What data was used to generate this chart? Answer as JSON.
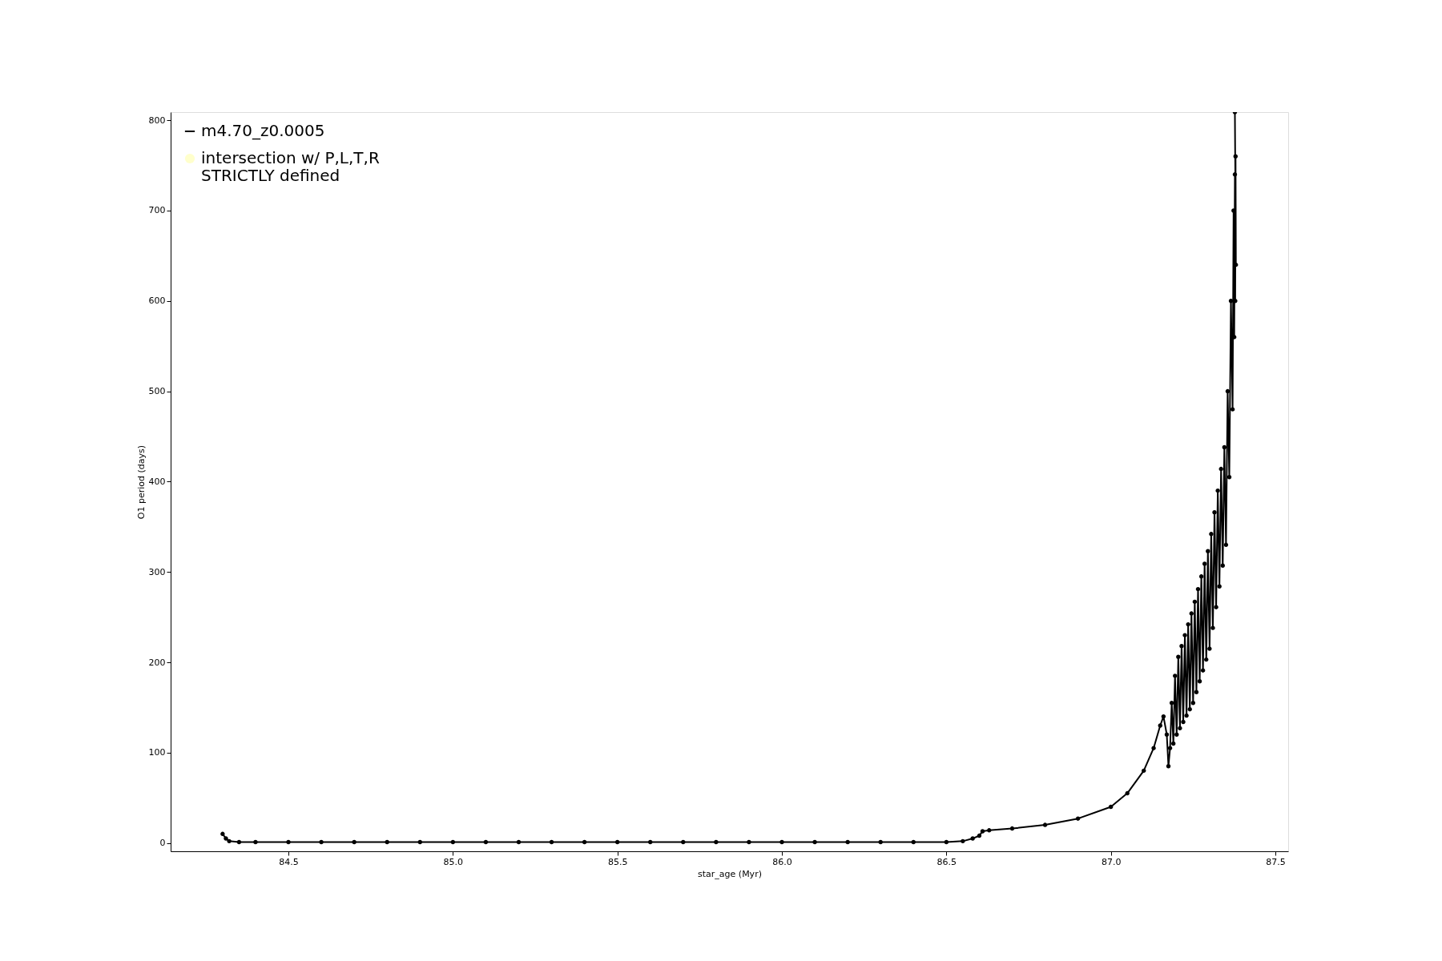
{
  "chart_data": {
    "type": "line",
    "xlabel": "star_age (Myr)",
    "ylabel": "O1 period (days)",
    "xlim": [
      84.142,
      87.539
    ],
    "ylim": [
      -9.2,
      809
    ],
    "xticks": [
      {
        "value": 84.5,
        "label": "84.5"
      },
      {
        "value": 85.0,
        "label": "85.0"
      },
      {
        "value": 85.5,
        "label": "85.5"
      },
      {
        "value": 86.0,
        "label": "86.0"
      },
      {
        "value": 86.5,
        "label": "86.5"
      },
      {
        "value": 87.0,
        "label": "87.0"
      },
      {
        "value": 87.5,
        "label": "87.5"
      }
    ],
    "yticks": [
      0,
      100,
      200,
      300,
      400,
      500,
      600,
      700,
      800
    ],
    "grid": false,
    "legend": "top left",
    "marker": "circle",
    "line_style": "solid",
    "series": [
      {
        "name": "m4.70_z0.0005",
        "color": "#000000",
        "x": [
          84.3,
          84.31,
          84.32,
          84.35,
          84.4,
          84.5,
          84.6,
          84.7,
          84.8,
          84.9,
          85.0,
          85.1,
          85.2,
          85.3,
          85.4,
          85.5,
          85.6,
          85.7,
          85.8,
          85.9,
          86.0,
          86.1,
          86.2,
          86.3,
          86.4,
          86.5,
          86.55,
          86.58,
          86.6,
          86.61,
          86.63,
          86.7,
          86.8,
          86.9,
          87.0,
          87.05,
          87.1,
          87.13,
          87.15,
          87.16,
          87.17,
          87.175,
          87.18,
          87.185,
          87.19,
          87.195,
          87.2,
          87.205,
          87.21,
          87.215,
          87.22,
          87.225,
          87.23,
          87.235,
          87.24,
          87.245,
          87.25,
          87.255,
          87.26,
          87.265,
          87.27,
          87.275,
          87.28,
          87.285,
          87.29,
          87.295,
          87.3,
          87.305,
          87.31,
          87.315,
          87.32,
          87.325,
          87.33,
          87.335,
          87.34,
          87.345,
          87.35,
          87.355,
          87.36,
          87.365,
          87.37,
          87.373,
          87.375,
          87.377,
          87.378,
          87.379,
          87.38,
          87.377
        ],
        "values": [
          10,
          5,
          2,
          1,
          1,
          1,
          1,
          1,
          1,
          1,
          1,
          1,
          1,
          1,
          1,
          1,
          1,
          1,
          1,
          1,
          1,
          1,
          1,
          1,
          1,
          1,
          2,
          5,
          8,
          13,
          14,
          16,
          20,
          27,
          40,
          55,
          80,
          105,
          130,
          140,
          120,
          85,
          105,
          155,
          110,
          185,
          120,
          206,
          127,
          218,
          134,
          230,
          141,
          242,
          148,
          254,
          155,
          267,
          167,
          281,
          179,
          295,
          191,
          309,
          203,
          323,
          215,
          342,
          238,
          366,
          261,
          390,
          284,
          414,
          307,
          438,
          330,
          500,
          405,
          600,
          480,
          700,
          560,
          740,
          600,
          760,
          640,
          809
        ]
      },
      {
        "name": "intersection w/ P,L,T,R\nSTRICTLY defined",
        "color": "#ffffaa",
        "type": "scatter"
      }
    ]
  }
}
